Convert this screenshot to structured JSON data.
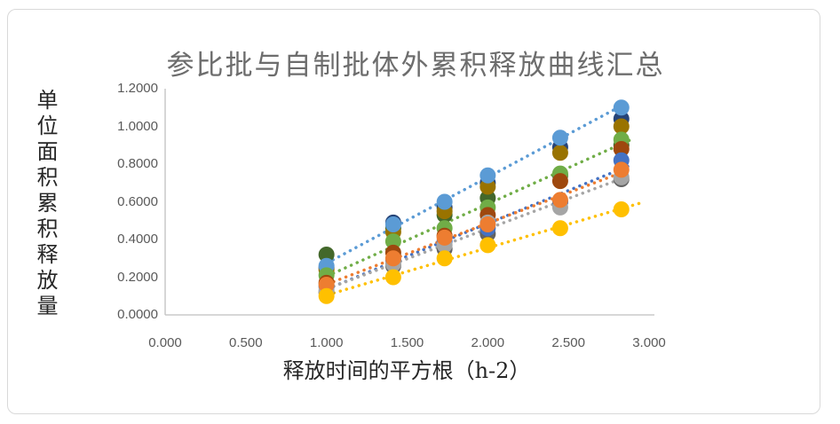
{
  "chart_data": {
    "type": "scatter",
    "title": "参比批与自制批体外累积释放曲线汇总",
    "xlabel": "释放时间的平方根（h-2）",
    "ylabel": "单位面积累积释放量",
    "legend_position": "none",
    "grid": false,
    "marker": "circle",
    "xlim": [
      0.0,
      3.0
    ],
    "ylim": [
      0.0,
      1.2
    ],
    "x_ticks": [
      "0.000",
      "0.500",
      "1.000",
      "1.500",
      "2.000",
      "2.500",
      "3.000"
    ],
    "y_ticks": [
      "0.0000",
      "0.2000",
      "0.4000",
      "0.6000",
      "0.8000",
      "1.0000",
      "1.2000"
    ],
    "x": [
      1.0,
      1.414,
      1.732,
      2.0,
      2.449,
      2.828
    ],
    "series": [
      {
        "name": "dark-gray",
        "color": "#636363",
        "trendline": false,
        "values": [
          0.12,
          0.26,
          0.35,
          0.43,
          0.6,
          0.72
        ]
      },
      {
        "name": "dark-green",
        "color": "#43682B",
        "trendline": false,
        "values": [
          0.32,
          0.46,
          0.53,
          0.62,
          0.74,
          0.9
        ]
      },
      {
        "name": "navy",
        "color": "#264478",
        "trendline": false,
        "values": [
          0.25,
          0.49,
          0.57,
          0.7,
          0.89,
          1.04
        ]
      },
      {
        "name": "dark-gold",
        "color": "#997300",
        "trendline": false,
        "values": [
          0.24,
          0.44,
          0.55,
          0.68,
          0.86,
          1.0
        ]
      },
      {
        "name": "light-blue",
        "color": "#5B9BD5",
        "trendline": true,
        "values": [
          0.26,
          0.48,
          0.6,
          0.74,
          0.94,
          1.1
        ]
      },
      {
        "name": "green",
        "color": "#70AD47",
        "trendline": true,
        "values": [
          0.21,
          0.39,
          0.46,
          0.57,
          0.75,
          0.93
        ]
      },
      {
        "name": "dark-orange",
        "color": "#9E480E",
        "trendline": false,
        "values": [
          0.17,
          0.33,
          0.42,
          0.53,
          0.71,
          0.88
        ]
      },
      {
        "name": "blue",
        "color": "#4472C4",
        "trendline": true,
        "values": [
          0.15,
          0.29,
          0.39,
          0.46,
          0.6,
          0.82
        ]
      },
      {
        "name": "gray",
        "color": "#A5A5A5",
        "trendline": true,
        "values": [
          0.13,
          0.27,
          0.37,
          0.49,
          0.57,
          0.73
        ]
      },
      {
        "name": "orange",
        "color": "#ED7D31",
        "trendline": true,
        "values": [
          0.16,
          0.3,
          0.41,
          0.48,
          0.61,
          0.77
        ]
      },
      {
        "name": "gold",
        "color": "#FFC000",
        "trendline": true,
        "trend_to": 2.95,
        "values": [
          0.1,
          0.2,
          0.3,
          0.37,
          0.46,
          0.56
        ]
      }
    ],
    "axis_color": "#BFBFBF",
    "frame_color": "#D9D9D9",
    "title_color": "#6d6d6d",
    "tick_color": "#595959"
  }
}
